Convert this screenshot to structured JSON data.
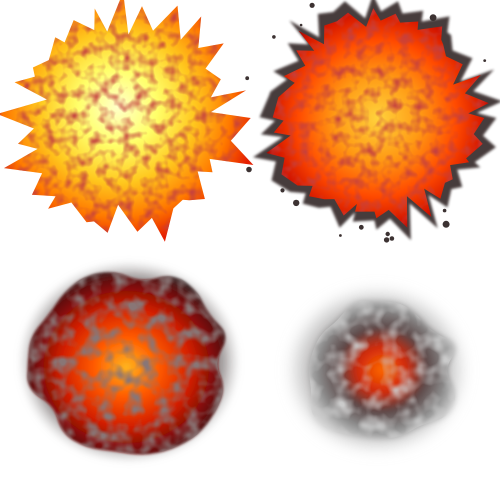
{
  "sprite_sheet": {
    "description_free": true,
    "frame_count": 4,
    "frames": [
      {
        "index": 1,
        "stage": 1,
        "smoke_amount": 0.0,
        "fire_intensity": 1.0,
        "spiky": true
      },
      {
        "index": 2,
        "stage": 2,
        "smoke_amount": 0.25,
        "fire_intensity": 0.85,
        "spiky": true
      },
      {
        "index": 3,
        "stage": 3,
        "smoke_amount": 0.55,
        "fire_intensity": 0.6,
        "spiky": false
      },
      {
        "index": 4,
        "stage": 4,
        "smoke_amount": 0.8,
        "fire_intensity": 0.35,
        "spiky": false
      }
    ],
    "colors": {
      "background": "#ffffff",
      "core": "#ffffa0",
      "yellow": "#ffd21e",
      "orange": "#ff8c00",
      "red": "#e11400",
      "dark_red": "#a00000",
      "smoke_dark": "#3c3232",
      "smoke_light": "#b4b4b4"
    }
  }
}
